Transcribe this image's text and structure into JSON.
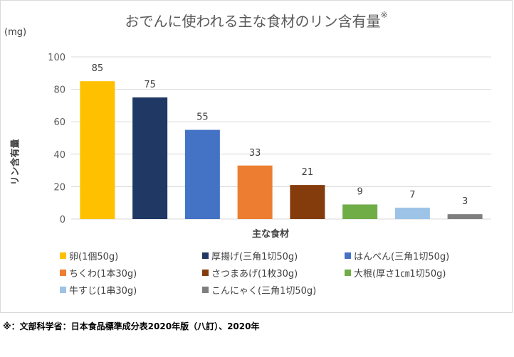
{
  "chart_data": {
    "type": "bar",
    "title": "おでんに使われる主な食材のリン含有量",
    "title_mark": "※",
    "unit": "(mg)",
    "ylabel": "リン含有量",
    "xlabel": "主な食材",
    "ylim": [
      0,
      100
    ],
    "yticks": [
      0,
      20,
      40,
      60,
      80,
      100
    ],
    "grid": true,
    "legend_position": "bottom",
    "categories": [
      "卵(1個50g)",
      "厚揚げ(三角1切50g)",
      "はんぺん(三角1切50g)",
      "ちくわ(1本30g)",
      "さつまあげ(1枚30g)",
      "大根(厚さ1㎝1切50g)",
      "牛すじ(1串30g)",
      "こんにゃく(三角1切50g)"
    ],
    "values": [
      85,
      75,
      55,
      33,
      21,
      9,
      7,
      3
    ],
    "colors": [
      "#ffc000",
      "#1f3864",
      "#4472c4",
      "#ed7d31",
      "#843c0c",
      "#70ad47",
      "#9dc3e6",
      "#7f7f7f"
    ]
  },
  "footnote": "※：文部科学省：日本食品標準成分表2020年版（八訂）、2020年"
}
